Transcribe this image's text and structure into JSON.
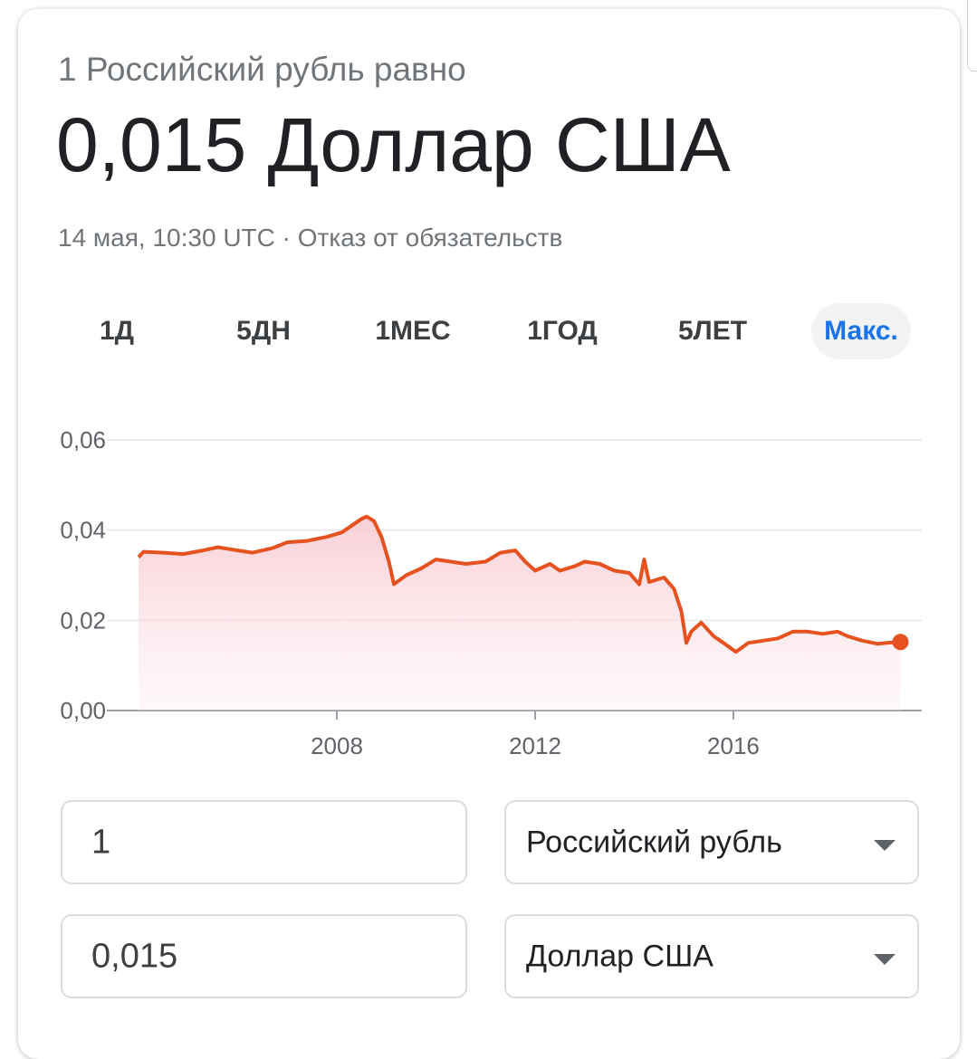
{
  "header": {
    "subtitle": "1 Российский рубль равно",
    "title": "0,015 Доллар США",
    "meta": "14 мая, 10:30 UTC · Отказ от обязательств"
  },
  "tabs": {
    "items": [
      "1Д",
      "5ДН",
      "1МЕС",
      "1ГОД",
      "5ЛЕТ",
      "Макс."
    ],
    "active": 5
  },
  "chart_data": {
    "type": "line",
    "color": "#e5521f",
    "grid": true,
    "x": [
      2004.0,
      2004.1,
      2004.5,
      2004.9,
      2005.3,
      2005.6,
      2006.0,
      2006.3,
      2006.7,
      2007.0,
      2007.4,
      2007.8,
      2008.1,
      2008.3,
      2008.5,
      2008.6,
      2008.75,
      2008.9,
      2009.05,
      2009.15,
      2009.4,
      2009.7,
      2010.0,
      2010.3,
      2010.6,
      2011.0,
      2011.3,
      2011.6,
      2011.8,
      2012.0,
      2012.3,
      2012.5,
      2012.8,
      2013.0,
      2013.3,
      2013.6,
      2013.9,
      2014.1,
      2014.2,
      2014.3,
      2014.6,
      2014.8,
      2014.95,
      2015.05,
      2015.15,
      2015.35,
      2015.6,
      2015.8,
      2016.05,
      2016.3,
      2016.6,
      2016.9,
      2017.2,
      2017.5,
      2017.8,
      2018.1,
      2018.3,
      2018.6,
      2018.9,
      2019.1,
      2019.37
    ],
    "series": [
      {
        "values": [
          0.034,
          0.0352,
          0.035,
          0.0347,
          0.0355,
          0.0362,
          0.0355,
          0.035,
          0.036,
          0.0373,
          0.0376,
          0.0385,
          0.0395,
          0.041,
          0.0425,
          0.043,
          0.042,
          0.0385,
          0.033,
          0.028,
          0.03,
          0.0315,
          0.0335,
          0.033,
          0.0325,
          0.033,
          0.035,
          0.0355,
          0.033,
          0.031,
          0.0325,
          0.031,
          0.032,
          0.033,
          0.0325,
          0.031,
          0.0305,
          0.028,
          0.0335,
          0.0285,
          0.0295,
          0.027,
          0.022,
          0.015,
          0.0175,
          0.0195,
          0.0165,
          0.015,
          0.013,
          0.015,
          0.0155,
          0.016,
          0.0175,
          0.0175,
          0.017,
          0.0175,
          0.0165,
          0.0155,
          0.0148,
          0.015,
          0.0152
        ]
      }
    ],
    "xlim": [
      2003.36,
      2019.8
    ],
    "xticks": [
      2008,
      2012,
      2016
    ],
    "ylim": [
      0,
      0.06
    ],
    "yticks": [
      {
        "value": 0,
        "label": "0,00"
      },
      {
        "value": 0.02,
        "label": "0,02"
      },
      {
        "value": 0.04,
        "label": "0,04"
      },
      {
        "value": 0.06,
        "label": "0,06"
      }
    ]
  },
  "converter": {
    "from_amount": "1",
    "from_currency": "Российский рубль",
    "to_amount": "0,015",
    "to_currency": "Доллар США"
  }
}
